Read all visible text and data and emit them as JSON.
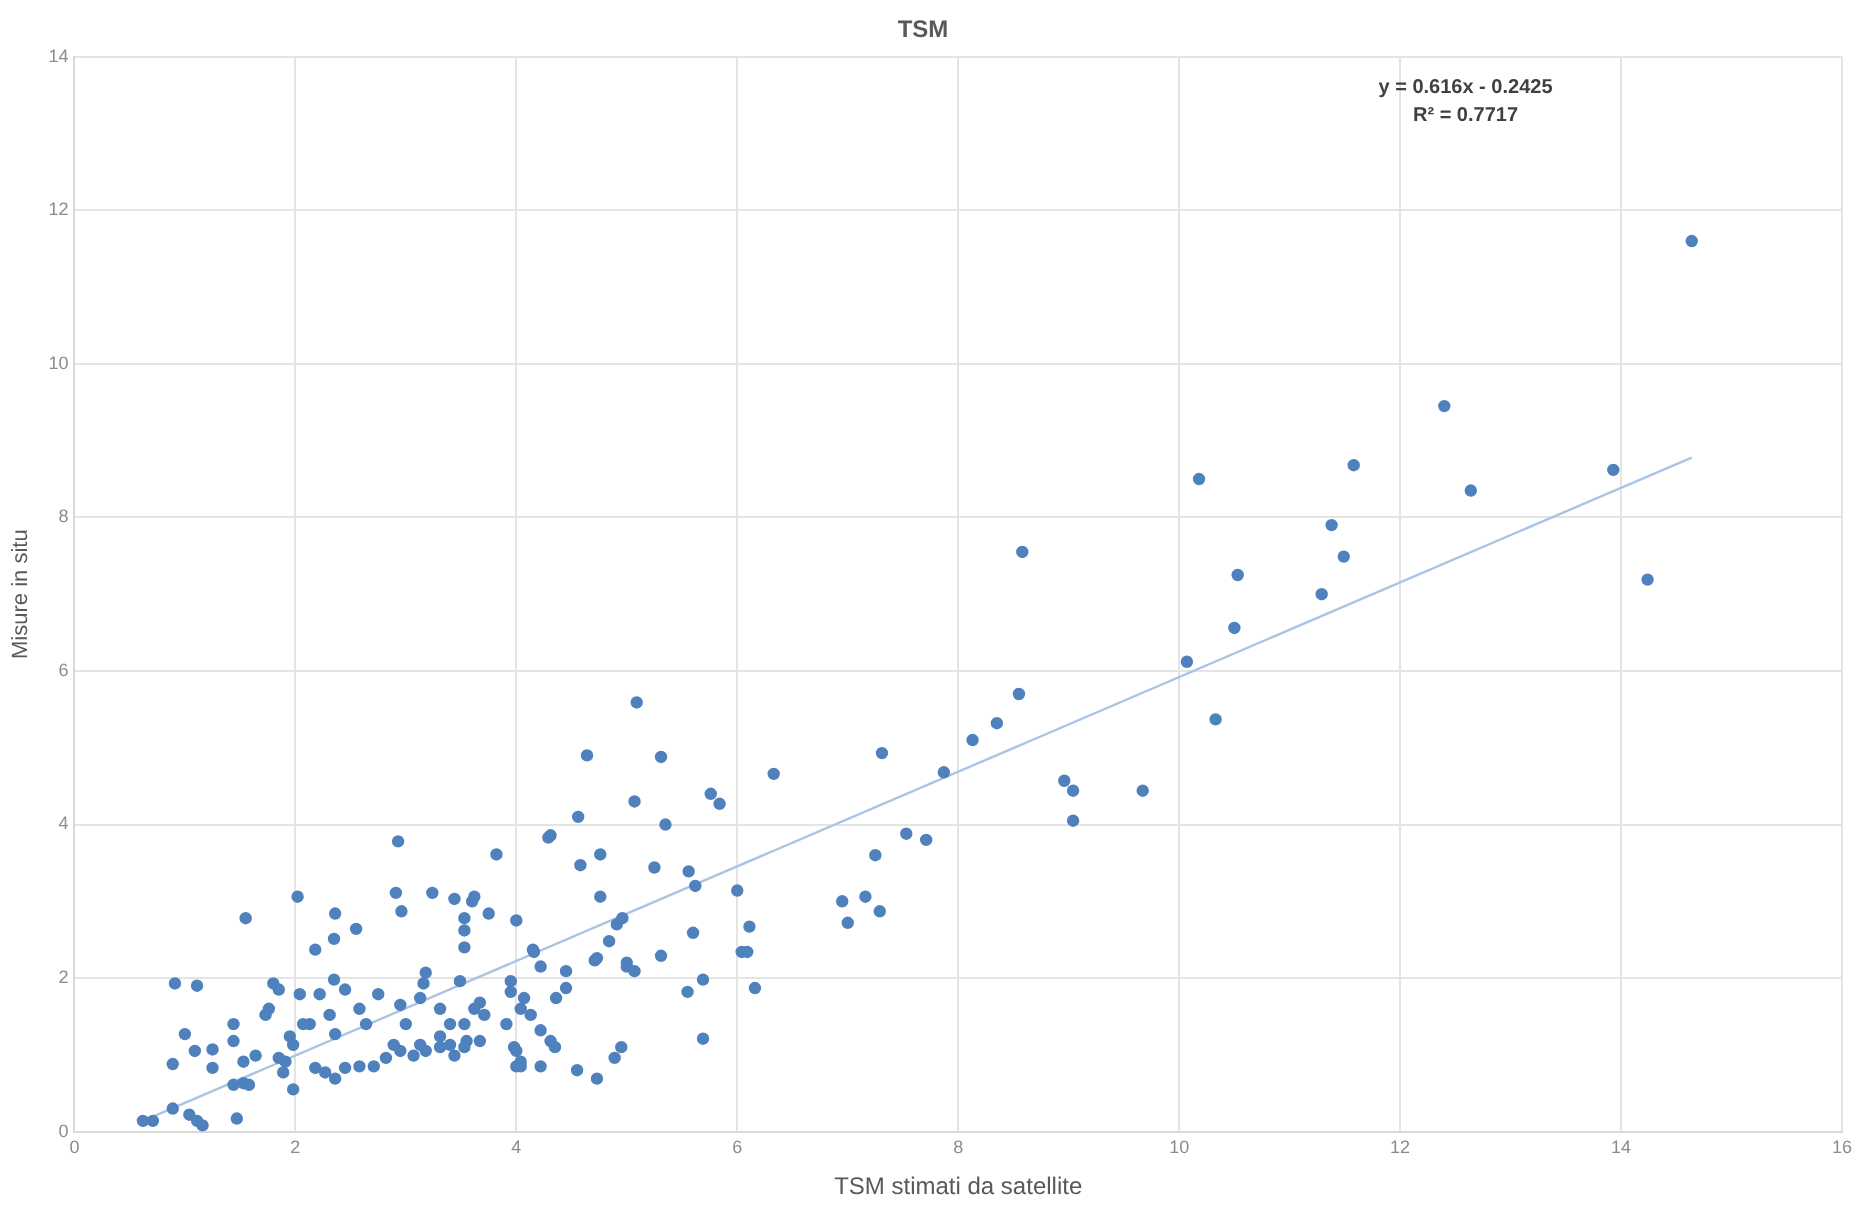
{
  "chart_data": {
    "type": "scatter",
    "title": "TSM",
    "xlabel": "TSM stimati da satellite",
    "ylabel": "Misure in situ",
    "xlim": [
      0,
      16
    ],
    "xticks": [
      0,
      2,
      4,
      6,
      8,
      10,
      12,
      14,
      16
    ],
    "ylim": [
      0,
      14
    ],
    "yticks": [
      0,
      2,
      4,
      6,
      8,
      10,
      12,
      14
    ],
    "grid": true,
    "legend": false,
    "annotations": [
      "y = 0.616x - 0.2425",
      "R² = 0.7717"
    ],
    "series": [
      {
        "color": "#4f81bd",
        "marker": "circle",
        "x": [
          14.64,
          12.4,
          13.93,
          12.64,
          11.58,
          10.18,
          11.38,
          11.49,
          14.24,
          10.53,
          8.58,
          11.29,
          10.5,
          10.07,
          10.33,
          8.55,
          8.35,
          8.13,
          7.87,
          7.31,
          8.96,
          9.04,
          9.04,
          9.67,
          7.53,
          7.71,
          7.25,
          7.29,
          6.95,
          7.0,
          7.16,
          5.09,
          4.64,
          5.31,
          6.33,
          5.76,
          5.84,
          5.07,
          4.56,
          5.35,
          4.29,
          3.82,
          4.76,
          4.58,
          5.25,
          5.56,
          5.62,
          4.76,
          6.0,
          3.75,
          4.0,
          4.96,
          4.91,
          4.84,
          5.6,
          6.11,
          6.04,
          6.09,
          5.31,
          4.73,
          5.0,
          4.15,
          3.62,
          2.93,
          2.02,
          2.91,
          2.96,
          3.24,
          3.44,
          3.6,
          1.55,
          2.36,
          2.55,
          2.35,
          2.18,
          3.53,
          3.53,
          3.53,
          0.91,
          1.11,
          1.8,
          1.85,
          1.76,
          1.73,
          2.04,
          2.22,
          2.35,
          2.45,
          2.75,
          3.18,
          3.16,
          3.13,
          3.49,
          3.95,
          3.95,
          4.16,
          3.67,
          3.62,
          2.95,
          3.0,
          2.58,
          2.64,
          2.31,
          2.36,
          2.13,
          3.31,
          3.4,
          3.31,
          3.53,
          3.55,
          3.71,
          3.91,
          4.04,
          1.95,
          1.98,
          2.07,
          1.85,
          1.91,
          2.18,
          2.27,
          2.36,
          2.45,
          2.58,
          2.71,
          2.82,
          2.89,
          2.95,
          3.07,
          3.13,
          3.18,
          3.31,
          3.4,
          3.44,
          3.53,
          3.67,
          3.98,
          4.04,
          4.0,
          1.98,
          1.89,
          1.44,
          1.44,
          1.64,
          1.53,
          1.53,
          1.58,
          1.44,
          1.25,
          1.25,
          1.09,
          1.0,
          0.89,
          0.62,
          0.71,
          0.89,
          1.04,
          1.11,
          1.16,
          1.47,
          5.55,
          5.69,
          5.69,
          6.16,
          4.73,
          4.55,
          4.89,
          4.95,
          4.22,
          4.04,
          4.0,
          4.22,
          4.07,
          4.13,
          4.22,
          4.31,
          4.35,
          4.36,
          4.45,
          4.45,
          4.71,
          5.0,
          5.07,
          4.31
        ],
        "values": [
          11.6,
          9.45,
          8.62,
          8.35,
          8.68,
          8.5,
          7.9,
          7.49,
          7.19,
          7.25,
          7.55,
          7.0,
          6.56,
          6.12,
          5.37,
          5.7,
          5.32,
          5.1,
          4.68,
          4.93,
          4.57,
          4.44,
          4.05,
          4.44,
          3.88,
          3.8,
          3.6,
          2.87,
          3.0,
          2.72,
          3.06,
          5.59,
          4.9,
          4.88,
          4.66,
          4.4,
          4.27,
          4.3,
          4.1,
          4.0,
          3.83,
          3.61,
          3.61,
          3.47,
          3.44,
          3.39,
          3.2,
          3.06,
          3.14,
          2.84,
          2.75,
          2.78,
          2.7,
          2.48,
          2.59,
          2.67,
          2.34,
          2.34,
          2.29,
          2.26,
          2.2,
          2.37,
          3.06,
          3.78,
          3.06,
          3.11,
          2.87,
          3.11,
          3.03,
          3.0,
          2.78,
          2.84,
          2.64,
          2.51,
          2.37,
          2.78,
          2.62,
          2.4,
          1.93,
          1.9,
          1.93,
          1.85,
          1.6,
          1.52,
          1.79,
          1.79,
          1.98,
          1.85,
          1.79,
          2.07,
          1.93,
          1.74,
          1.96,
          1.96,
          1.82,
          2.34,
          1.68,
          1.6,
          1.65,
          1.4,
          1.6,
          1.4,
          1.52,
          1.27,
          1.4,
          1.6,
          1.4,
          1.24,
          1.4,
          1.18,
          1.52,
          1.4,
          1.6,
          1.24,
          1.13,
          1.4,
          0.96,
          0.91,
          0.83,
          0.77,
          0.69,
          0.83,
          0.85,
          0.85,
          0.96,
          1.13,
          1.05,
          0.99,
          1.13,
          1.05,
          1.1,
          1.13,
          0.99,
          1.1,
          1.18,
          1.1,
          0.91,
          0.85,
          0.55,
          0.77,
          1.4,
          1.18,
          0.99,
          0.91,
          0.63,
          0.61,
          0.61,
          1.07,
          0.83,
          1.05,
          1.27,
          0.88,
          0.14,
          0.14,
          0.3,
          0.22,
          0.14,
          0.08,
          0.17,
          1.82,
          1.98,
          1.21,
          1.87,
          0.69,
          0.8,
          0.96,
          1.1,
          0.85,
          0.85,
          1.05,
          2.15,
          1.74,
          1.52,
          1.32,
          1.18,
          1.1,
          1.74,
          1.87,
          2.09,
          2.23,
          2.15,
          2.09,
          3.86
        ]
      },
      {
        "color": "#a9c4e4",
        "type": "line",
        "marker": "none",
        "x": [
          0.62,
          14.64
        ],
        "values": [
          0.14,
          8.78
        ]
      }
    ]
  }
}
